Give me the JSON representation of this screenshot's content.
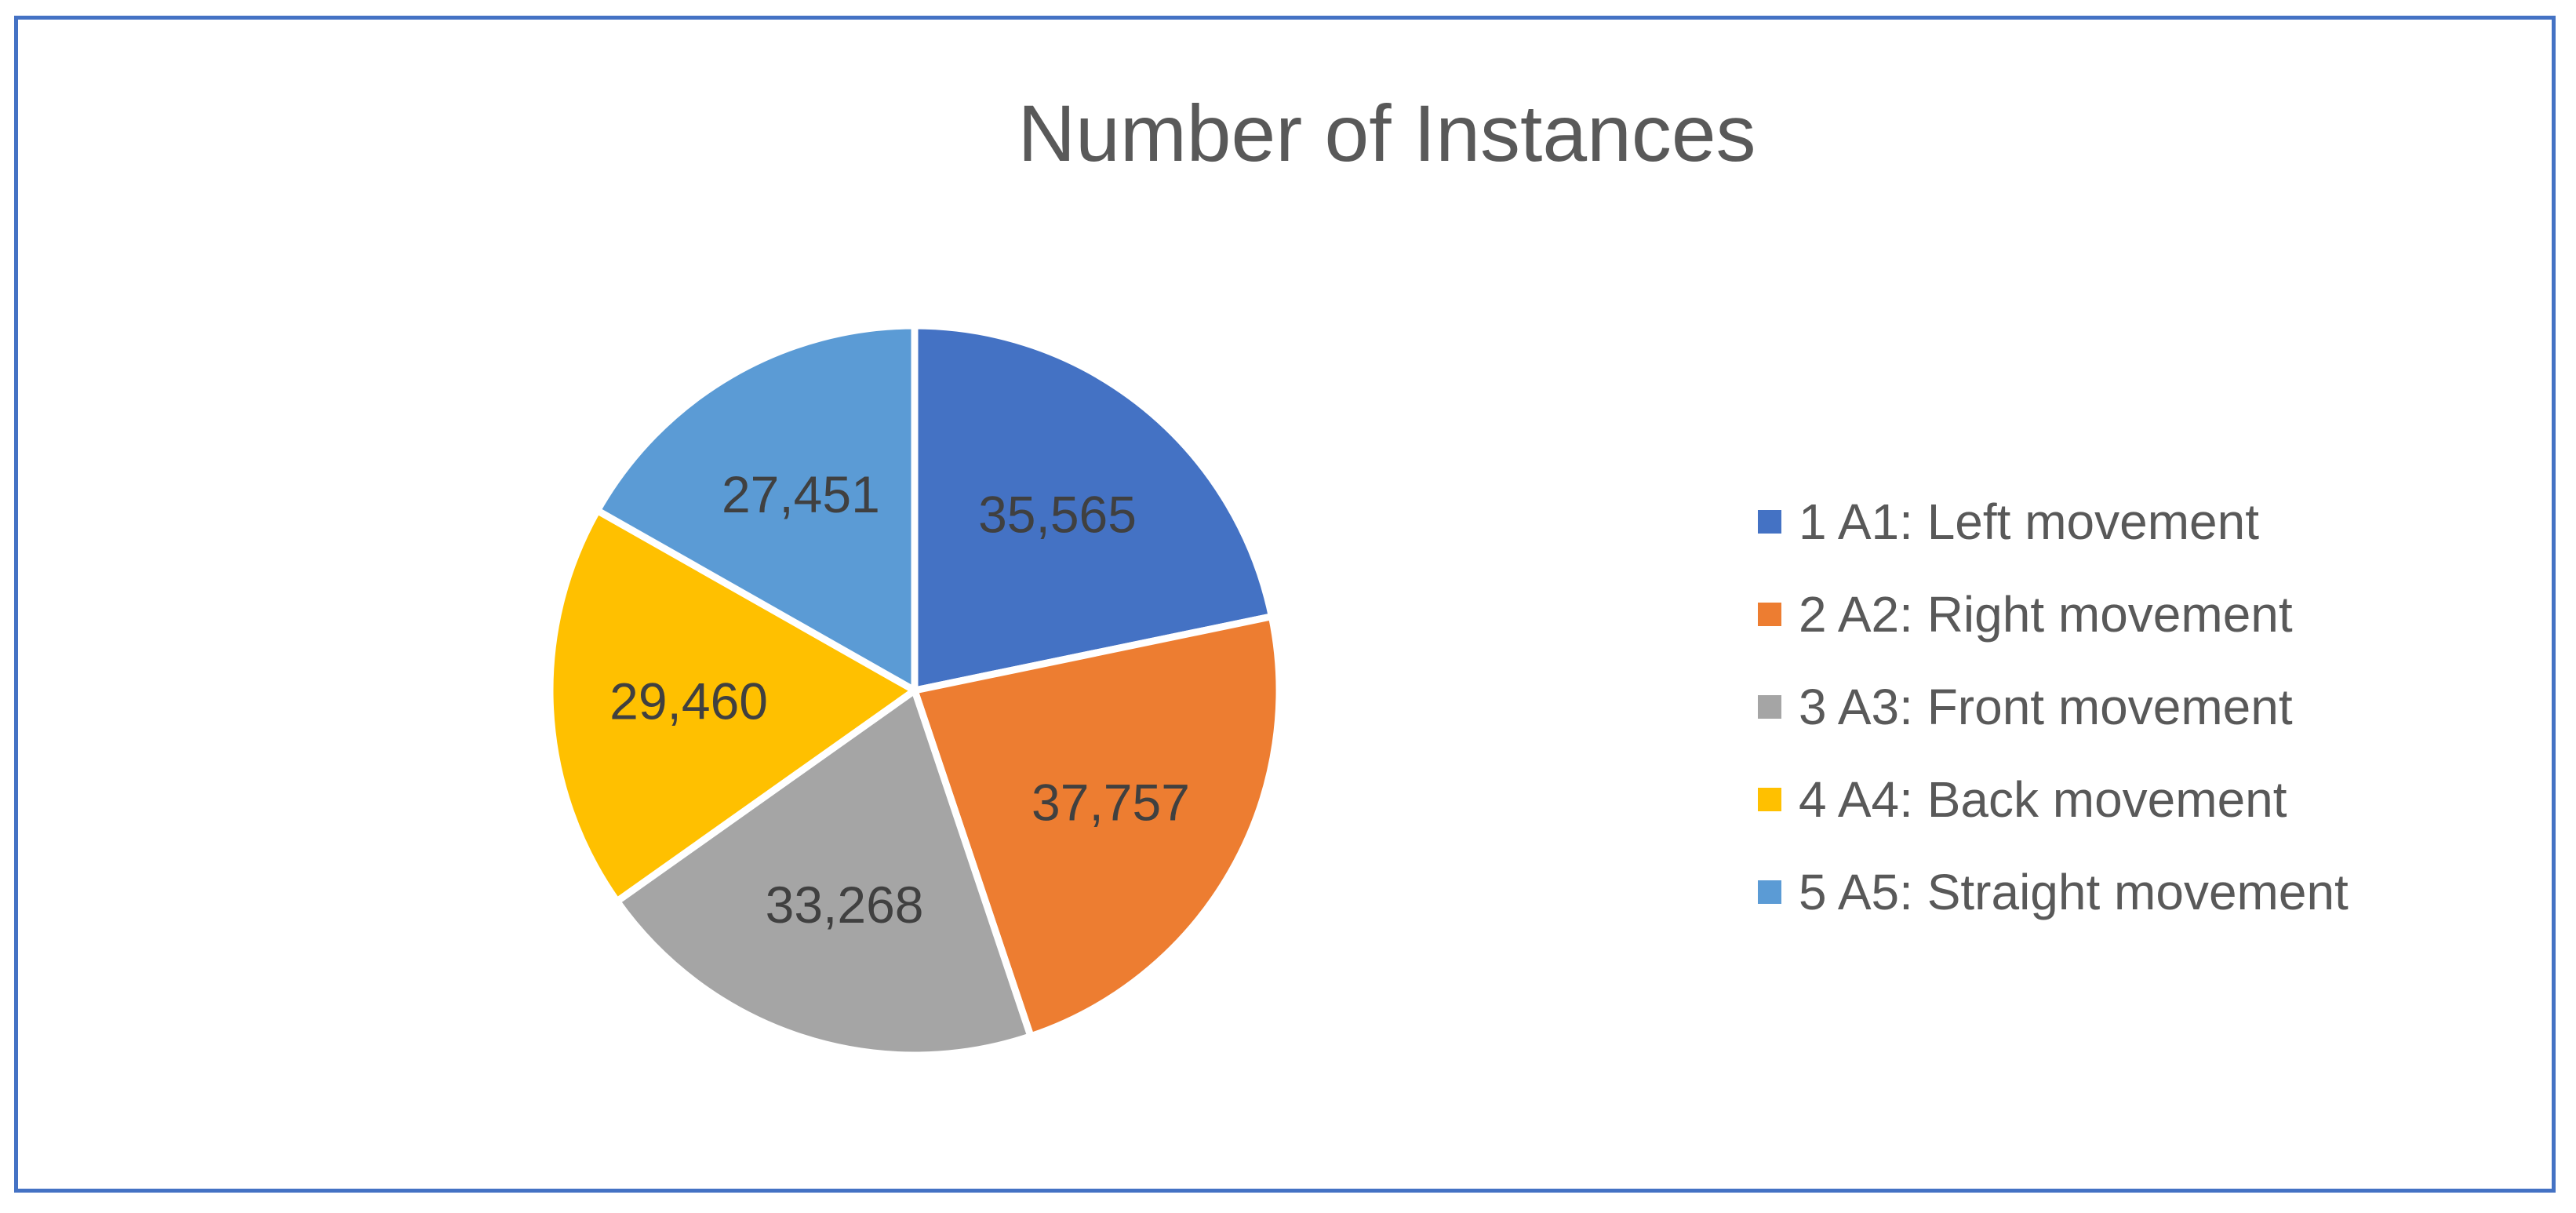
{
  "chart_data": {
    "type": "pie",
    "title": "Number of Instances",
    "categories": [
      "1 A1: Left movement",
      "2 A2: Right movement",
      "3 A3: Front movement",
      "4 A4: Back movement",
      "5 A5: Straight movement"
    ],
    "values": [
      35565,
      37757,
      33268,
      29460,
      27451
    ],
    "value_labels": [
      "35,565",
      "37,757",
      "33,268",
      "29,460",
      "27,451"
    ],
    "colors": [
      "#4472C4",
      "#ED7D31",
      "#A5A5A5",
      "#FFC000",
      "#5B9BD5"
    ],
    "legend_position": "right",
    "start_angle": "12 o'clock, clockwise"
  },
  "frame": {
    "border_color": "#4472C4"
  }
}
